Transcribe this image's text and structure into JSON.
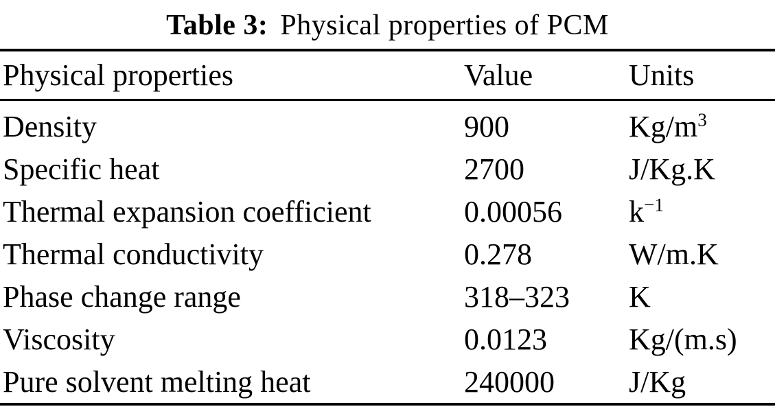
{
  "caption": {
    "label": "Table 3:",
    "text": "Physical properties of PCM"
  },
  "table": {
    "columns": [
      "Physical properties",
      "Value",
      "Units"
    ],
    "rows": [
      {
        "property": "Density",
        "value": "900",
        "unit": "Kg/m",
        "unit_sup": "3"
      },
      {
        "property": "Specific heat",
        "value": "2700",
        "unit": "J/Kg.K",
        "unit_sup": ""
      },
      {
        "property": "Thermal expansion coefficient",
        "value": "0.00056",
        "unit": "k",
        "unit_sup": "−1"
      },
      {
        "property": "Thermal conductivity",
        "value": "0.278",
        "unit": "W/m.K",
        "unit_sup": ""
      },
      {
        "property": "Phase change range",
        "value": "318–323",
        "unit": "K",
        "unit_sup": ""
      },
      {
        "property": "Viscosity",
        "value": "0.0123",
        "unit": "Kg/(m.s)",
        "unit_sup": ""
      },
      {
        "property": "Pure solvent melting heat",
        "value": "240000",
        "unit": "J/Kg",
        "unit_sup": ""
      }
    ]
  },
  "colors": {
    "text": "#000000",
    "background": "#ffffff",
    "rule": "#000000"
  }
}
